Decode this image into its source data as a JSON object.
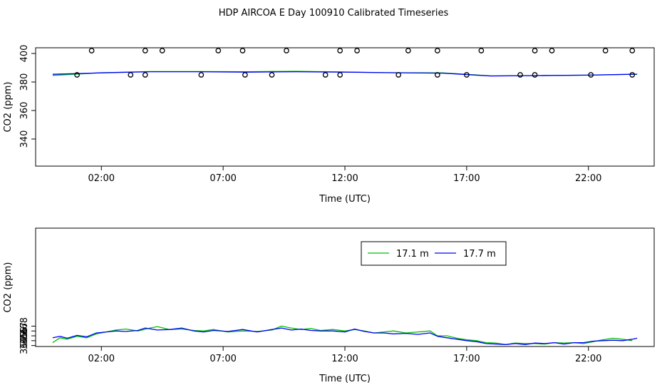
{
  "figure": {
    "title": "HDP AIRCOA E  Day 100910  Calibrated Timeseries"
  },
  "chart_data": [
    {
      "type": "scatter",
      "xlabel": "Time (UTC)",
      "ylabel": "CO2 (ppm)",
      "xlim": [
        -0.7,
        24.7
      ],
      "ylim": [
        321,
        404
      ],
      "x_ticks": [
        2,
        7,
        12,
        17,
        22
      ],
      "x_tick_labels": [
        "02:00",
        "07:00",
        "12:00",
        "17:00",
        "22:00"
      ],
      "y_ticks": [
        340,
        360,
        380,
        400
      ],
      "y_tick_labels": [
        "340",
        "360",
        "380",
        "400"
      ],
      "series": [
        {
          "name": "17.1 m",
          "color": "#00c000",
          "line_points": [
            [
              0.0,
              384.6
            ],
            [
              2.0,
              386.5
            ],
            [
              4.0,
              387.3
            ],
            [
              6.0,
              387.3
            ],
            [
              8.0,
              387.2
            ],
            [
              10.0,
              387.5
            ],
            [
              12.0,
              387.0
            ],
            [
              14.0,
              386.5
            ],
            [
              16.0,
              386.4
            ],
            [
              18.0,
              384.3
            ],
            [
              20.0,
              384.5
            ],
            [
              22.0,
              384.8
            ],
            [
              24.0,
              385.4
            ]
          ]
        },
        {
          "name": "17.7 m",
          "color": "#0000ff",
          "line_points": [
            [
              0.0,
              385.4
            ],
            [
              2.0,
              386.4
            ],
            [
              4.0,
              387.2
            ],
            [
              6.0,
              387.2
            ],
            [
              8.0,
              386.9
            ],
            [
              10.0,
              387.2
            ],
            [
              12.0,
              386.9
            ],
            [
              14.0,
              386.5
            ],
            [
              16.0,
              386.2
            ],
            [
              18.0,
              384.2
            ],
            [
              20.0,
              384.5
            ],
            [
              22.0,
              384.8
            ],
            [
              24.0,
              385.5
            ]
          ]
        }
      ],
      "calibration_points": [
        [
          1.0,
          385
        ],
        [
          1.6,
          402
        ],
        [
          3.2,
          385
        ],
        [
          3.8,
          385
        ],
        [
          3.8,
          402
        ],
        [
          4.5,
          402
        ],
        [
          6.1,
          385
        ],
        [
          6.8,
          402
        ],
        [
          7.8,
          402
        ],
        [
          7.9,
          385
        ],
        [
          9.0,
          385
        ],
        [
          9.6,
          402
        ],
        [
          11.2,
          385
        ],
        [
          11.8,
          385
        ],
        [
          11.8,
          402
        ],
        [
          12.5,
          402
        ],
        [
          14.2,
          385
        ],
        [
          14.6,
          402
        ],
        [
          15.8,
          385
        ],
        [
          15.8,
          402
        ],
        [
          17.0,
          385
        ],
        [
          17.6,
          402
        ],
        [
          19.2,
          385
        ],
        [
          19.8,
          385
        ],
        [
          19.8,
          402
        ],
        [
          20.5,
          402
        ],
        [
          22.1,
          385
        ],
        [
          22.7,
          402
        ],
        [
          23.8,
          385
        ],
        [
          23.8,
          402
        ]
      ]
    },
    {
      "type": "line",
      "xlabel": "Time (UTC)",
      "ylabel": "CO2 (ppm)",
      "xlim": [
        -0.7,
        24.7
      ],
      "ylim": [
        363.8,
        388.2
      ],
      "x_ticks": [
        2,
        7,
        12,
        17,
        22
      ],
      "x_tick_labels": [
        "02:00",
        "07:00",
        "12:00",
        "17:00",
        "22:00"
      ],
      "y_ticks": [
        364,
        365,
        366,
        367,
        368
      ],
      "y_tick_labels": [
        "364",
        "365",
        "366",
        "367",
        "368"
      ],
      "legend": {
        "placement": "top-right",
        "entries": [
          "17.1 m",
          "17.7 m"
        ]
      },
      "series": [
        {
          "name": "17.1 m",
          "color": "#00c000",
          "points": [
            [
              0.0,
              364.6
            ],
            [
              0.3,
              365.6
            ],
            [
              0.6,
              365.3
            ],
            [
              1.0,
              365.9
            ],
            [
              1.4,
              365.6
            ],
            [
              1.8,
              366.4
            ],
            [
              2.2,
              366.8
            ],
            [
              2.6,
              367.2
            ],
            [
              3.0,
              367.4
            ],
            [
              3.5,
              367.0
            ],
            [
              4.0,
              367.6
            ],
            [
              4.3,
              367.9
            ],
            [
              4.8,
              367.3
            ],
            [
              5.3,
              367.4
            ],
            [
              5.8,
              367.1
            ],
            [
              6.2,
              367.0
            ],
            [
              6.6,
              367.3
            ],
            [
              7.2,
              366.8
            ],
            [
              7.8,
              367.0
            ],
            [
              8.4,
              366.9
            ],
            [
              9.0,
              367.2
            ],
            [
              9.4,
              368.0
            ],
            [
              9.8,
              367.6
            ],
            [
              10.2,
              367.3
            ],
            [
              10.6,
              367.5
            ],
            [
              11.0,
              367.1
            ],
            [
              11.5,
              367.3
            ],
            [
              12.0,
              367.0
            ],
            [
              12.4,
              367.3
            ],
            [
              12.8,
              367.0
            ],
            [
              13.2,
              366.6
            ],
            [
              13.6,
              366.8
            ],
            [
              14.0,
              367.0
            ],
            [
              14.5,
              366.6
            ],
            [
              15.0,
              366.8
            ],
            [
              15.5,
              367.0
            ],
            [
              15.8,
              366.0
            ],
            [
              16.2,
              366.0
            ],
            [
              16.6,
              365.5
            ],
            [
              17.0,
              365.2
            ],
            [
              17.4,
              365.0
            ],
            [
              17.8,
              364.6
            ],
            [
              18.2,
              364.5
            ],
            [
              18.6,
              364.2
            ],
            [
              19.0,
              364.5
            ],
            [
              19.4,
              364.4
            ],
            [
              19.8,
              364.4
            ],
            [
              20.2,
              364.3
            ],
            [
              20.6,
              364.6
            ],
            [
              21.0,
              364.5
            ],
            [
              21.4,
              364.6
            ],
            [
              21.8,
              364.4
            ],
            [
              22.2,
              364.8
            ],
            [
              22.6,
              365.2
            ],
            [
              23.0,
              365.5
            ],
            [
              23.4,
              365.3
            ],
            [
              23.8,
              365.0
            ]
          ]
        },
        {
          "name": "17.7 m",
          "color": "#0000ff",
          "points": [
            [
              0.0,
              365.6
            ],
            [
              0.3,
              365.9
            ],
            [
              0.6,
              365.5
            ],
            [
              1.0,
              366.1
            ],
            [
              1.4,
              365.8
            ],
            [
              1.8,
              366.6
            ],
            [
              2.2,
              366.8
            ],
            [
              2.6,
              367.0
            ],
            [
              3.0,
              366.9
            ],
            [
              3.5,
              367.1
            ],
            [
              3.8,
              367.6
            ],
            [
              4.3,
              367.2
            ],
            [
              4.8,
              367.3
            ],
            [
              5.3,
              367.6
            ],
            [
              5.8,
              367.0
            ],
            [
              6.2,
              366.8
            ],
            [
              6.6,
              367.1
            ],
            [
              7.2,
              366.9
            ],
            [
              7.8,
              367.3
            ],
            [
              8.4,
              366.8
            ],
            [
              9.0,
              367.3
            ],
            [
              9.4,
              367.6
            ],
            [
              9.8,
              367.2
            ],
            [
              10.2,
              367.4
            ],
            [
              10.6,
              367.1
            ],
            [
              11.0,
              367.0
            ],
            [
              11.5,
              367.0
            ],
            [
              12.0,
              366.8
            ],
            [
              12.4,
              367.4
            ],
            [
              12.8,
              366.9
            ],
            [
              13.2,
              366.6
            ],
            [
              13.6,
              366.6
            ],
            [
              14.0,
              366.4
            ],
            [
              14.5,
              366.5
            ],
            [
              15.0,
              366.3
            ],
            [
              15.5,
              366.6
            ],
            [
              15.8,
              365.9
            ],
            [
              16.2,
              365.6
            ],
            [
              16.6,
              365.3
            ],
            [
              17.0,
              365.0
            ],
            [
              17.4,
              364.8
            ],
            [
              17.8,
              364.4
            ],
            [
              18.2,
              364.3
            ],
            [
              18.6,
              364.2
            ],
            [
              19.0,
              364.4
            ],
            [
              19.4,
              364.2
            ],
            [
              19.8,
              364.5
            ],
            [
              20.2,
              364.4
            ],
            [
              20.6,
              364.6
            ],
            [
              21.0,
              364.3
            ],
            [
              21.4,
              364.6
            ],
            [
              21.8,
              364.6
            ],
            [
              22.2,
              364.9
            ],
            [
              22.6,
              365.0
            ],
            [
              23.0,
              365.1
            ],
            [
              23.4,
              365.0
            ],
            [
              23.8,
              365.3
            ],
            [
              24.0,
              365.5
            ]
          ]
        }
      ]
    }
  ]
}
